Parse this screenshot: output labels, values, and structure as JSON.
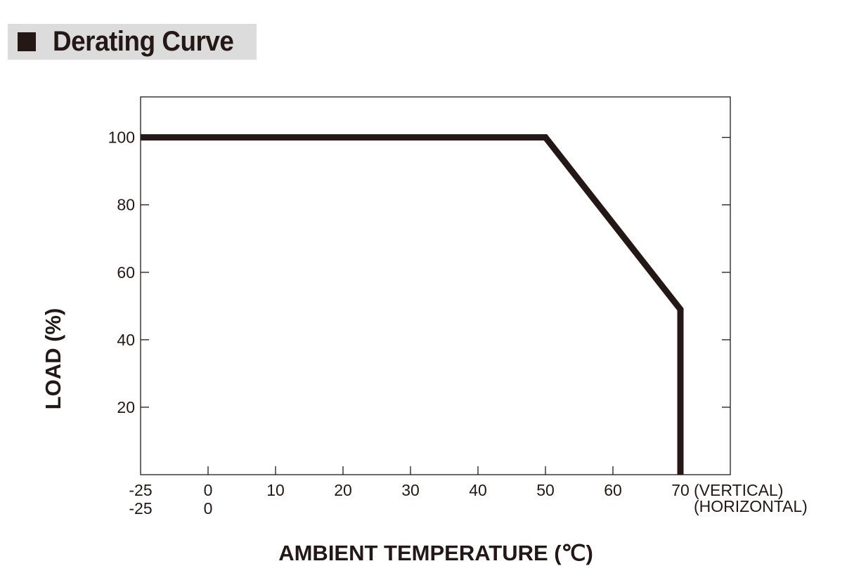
{
  "header": {
    "title": "Derating Curve"
  },
  "chart_data": {
    "type": "line",
    "title": "",
    "xlabel": "AMBIENT TEMPERATURE (℃)",
    "ylabel": "LOAD (%)",
    "xlim": [
      -25,
      75
    ],
    "ylim": [
      0,
      112
    ],
    "grid": false,
    "series": [
      {
        "points": [
          [
            -25,
            100
          ],
          [
            50,
            100
          ],
          [
            70,
            49
          ],
          [
            70,
            0
          ]
        ],
        "color": "#231815"
      }
    ],
    "x_ticks": [
      -25,
      0,
      10,
      20,
      30,
      40,
      50,
      60,
      70
    ],
    "y_ticks": [
      20,
      40,
      60,
      80,
      100
    ],
    "x_tick_labels_vertical": [
      "-25",
      "0",
      "10",
      "20",
      "30",
      "40",
      "50",
      "60",
      "70"
    ],
    "x_tick_labels_horizontal": [
      "-25",
      "0"
    ],
    "orientation_labels": {
      "vertical": "(VERTICAL)",
      "horizontal": "(HORIZONTAL)"
    },
    "y_tick_labels": [
      "20",
      "40",
      "60",
      "80",
      "100"
    ]
  }
}
